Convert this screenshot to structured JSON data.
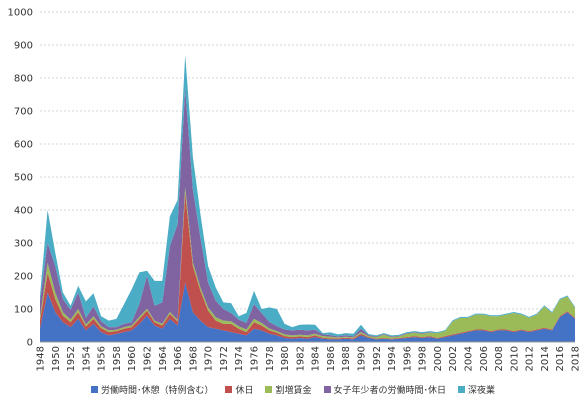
{
  "chart_data": {
    "type": "area",
    "stacked": true,
    "title": "",
    "xlabel": "",
    "ylabel": "",
    "ylim": [
      0,
      1000
    ],
    "yticks": [
      0,
      100,
      200,
      300,
      400,
      500,
      600,
      700,
      800,
      900,
      1000
    ],
    "grid": true,
    "legend_position": "bottom",
    "x": [
      1948,
      1949,
      1950,
      1951,
      1952,
      1953,
      1954,
      1955,
      1956,
      1957,
      1958,
      1959,
      1960,
      1961,
      1962,
      1963,
      1964,
      1965,
      1966,
      1967,
      1968,
      1969,
      1970,
      1971,
      1972,
      1973,
      1974,
      1975,
      1976,
      1977,
      1978,
      1979,
      1980,
      1981,
      1982,
      1983,
      1984,
      1985,
      1986,
      1987,
      1988,
      1989,
      1990,
      1991,
      1992,
      1993,
      1994,
      1995,
      1996,
      1997,
      1998,
      1999,
      2000,
      2001,
      2002,
      2003,
      2004,
      2005,
      2006,
      2007,
      2008,
      2009,
      2010,
      2011,
      2012,
      2013,
      2014,
      2015,
      2016,
      2017,
      2018
    ],
    "xtick_labels": [
      "1948",
      "1950",
      "1952",
      "1954",
      "1956",
      "1958",
      "1960",
      "1962",
      "1964",
      "1966",
      "1968",
      "1970",
      "1972",
      "1974",
      "1976",
      "1978",
      "1980",
      "1982",
      "1984",
      "1986",
      "1988",
      "1990",
      "1992",
      "1994",
      "1996",
      "1998",
      "2000",
      "2002",
      "2004",
      "2006",
      "2008",
      "2010",
      "2012",
      "2014",
      "2016",
      "2018"
    ],
    "series": [
      {
        "name": "労働時間･休憩（特例含む）",
        "color": "#4472c4",
        "values": [
          40,
          150,
          90,
          60,
          45,
          70,
          35,
          55,
          30,
          20,
          25,
          30,
          35,
          55,
          80,
          50,
          40,
          70,
          50,
          180,
          90,
          65,
          45,
          40,
          35,
          30,
          25,
          20,
          40,
          35,
          25,
          20,
          12,
          10,
          12,
          10,
          15,
          10,
          8,
          8,
          10,
          8,
          20,
          12,
          8,
          10,
          8,
          10,
          12,
          15,
          12,
          15,
          10,
          15,
          20,
          25,
          30,
          35,
          35,
          30,
          35,
          35,
          30,
          35,
          30,
          35,
          40,
          35,
          75,
          90,
          70
        ]
      },
      {
        "name": "休日",
        "color": "#c0504d",
        "values": [
          25,
          60,
          40,
          20,
          15,
          20,
          12,
          15,
          12,
          10,
          8,
          10,
          10,
          15,
          15,
          10,
          10,
          15,
          12,
          270,
          140,
          90,
          50,
          25,
          20,
          25,
          15,
          10,
          20,
          15,
          10,
          8,
          6,
          5,
          5,
          5,
          5,
          3,
          3,
          3,
          3,
          3,
          5,
          3,
          2,
          2,
          2,
          2,
          3,
          3,
          3,
          3,
          2,
          3,
          3,
          3,
          3,
          3,
          3,
          3,
          3,
          3,
          3,
          3,
          3,
          3,
          3,
          3,
          3,
          3,
          3
        ]
      },
      {
        "name": "割増賃金",
        "color": "#9bbb59",
        "values": [
          10,
          30,
          20,
          10,
          8,
          10,
          6,
          8,
          6,
          5,
          4,
          5,
          5,
          6,
          6,
          5,
          5,
          6,
          5,
          20,
          12,
          10,
          10,
          10,
          10,
          8,
          8,
          8,
          10,
          8,
          6,
          5,
          5,
          5,
          5,
          5,
          5,
          5,
          5,
          3,
          3,
          3,
          5,
          3,
          5,
          10,
          5,
          5,
          10,
          10,
          10,
          10,
          15,
          15,
          40,
          45,
          40,
          45,
          45,
          45,
          40,
          45,
          55,
          45,
          40,
          45,
          65,
          50,
          50,
          45,
          30
        ]
      },
      {
        "name": "女子年少者の労働時間･休日",
        "color": "#8064a2",
        "values": [
          50,
          60,
          80,
          40,
          30,
          50,
          20,
          30,
          15,
          10,
          8,
          10,
          10,
          40,
          100,
          45,
          65,
          200,
          290,
          300,
          220,
          150,
          75,
          50,
          35,
          25,
          20,
          20,
          45,
          30,
          20,
          15,
          15,
          15,
          15,
          15,
          12,
          5,
          5,
          3,
          5,
          3,
          10,
          3,
          2,
          2,
          2,
          2,
          2,
          2,
          2,
          2,
          0,
          0,
          0,
          0,
          0,
          0,
          0,
          0,
          0,
          0,
          0,
          0,
          0,
          0,
          0,
          0,
          0,
          0,
          0
        ]
      },
      {
        "name": "深夜業",
        "color": "#4bacc6",
        "values": [
          15,
          100,
          40,
          20,
          12,
          20,
          50,
          40,
          15,
          20,
          25,
          60,
          100,
          95,
          15,
          75,
          65,
          90,
          73,
          100,
          98,
          71,
          50,
          40,
          20,
          30,
          10,
          30,
          40,
          12,
          44,
          52,
          17,
          10,
          15,
          18,
          15,
          4,
          8,
          6,
          6,
          8,
          12,
          3,
          3,
          3,
          3,
          3,
          3,
          3,
          3,
          3,
          3,
          3,
          3,
          3,
          3,
          3,
          3,
          3,
          3,
          3,
          3,
          3,
          3,
          3,
          3,
          3,
          3,
          3,
          3
        ]
      }
    ]
  }
}
